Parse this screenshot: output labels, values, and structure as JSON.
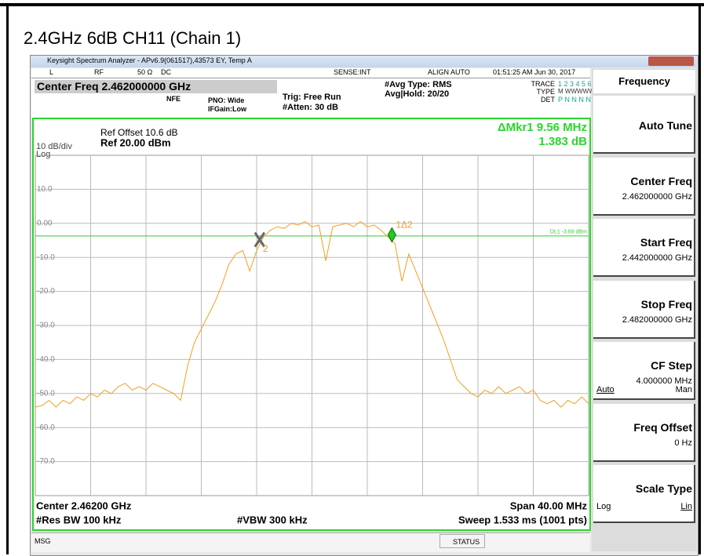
{
  "title": "2.4GHz 6dB CH11 (Chain 1)",
  "window_title": "Keysight Spectrum Analyzer - APv6.9(061517),43573 EY, Temp A",
  "status_bar": {
    "mode": "L",
    "rf": "RF",
    "impedance": "50 Ω",
    "coupling": "DC",
    "sense": "SENSE:INT",
    "align": "ALIGN AUTO",
    "datetime": "01:51:25 AM Jun 30, 2017"
  },
  "header": {
    "center_freq": "Center Freq 2.462000000 GHz",
    "nfe": "NFE",
    "pno": "PNO: Wide",
    "ifgain": "IFGain:Low",
    "trig": "Trig: Free Run",
    "atten": "#Atten: 30 dB",
    "avg_type": "#Avg Type: RMS",
    "avg_hold": "Avg|Hold: 20/20",
    "trace_label": "TRACE",
    "trace_nums": "1 2 3 4 5 6",
    "type_label": "TYPE",
    "type_val": "M WWWWW",
    "det_label": "DET",
    "det_val": "P N N N N N"
  },
  "plot": {
    "ref_offset": "Ref Offset 10.6 dB",
    "ref": "Ref 20.00 dBm",
    "scale": "10 dB/div",
    "scale_type": "Log",
    "marker_readout": [
      "ΔMkr1 9.56 MHz",
      "1.383 dB"
    ],
    "yticks": [
      {
        "value": 10,
        "label": "10.0"
      },
      {
        "value": 0,
        "label": "0.00"
      },
      {
        "value": -10,
        "label": "-10.0"
      },
      {
        "value": -20,
        "label": "-20.0"
      },
      {
        "value": -30,
        "label": "-30.0"
      },
      {
        "value": -40,
        "label": "-40.0"
      },
      {
        "value": -50,
        "label": "-50.0"
      },
      {
        "value": -60,
        "label": "-60.0"
      },
      {
        "value": -70,
        "label": "-70.0"
      }
    ],
    "display_line": {
      "label": "DL1 -3.69 dBm",
      "value": -3.69
    },
    "markers": [
      {
        "label": "1Δ2",
        "x": 2467.78,
        "value": -3.4
      },
      {
        "label": "2",
        "x": 2458.22,
        "value": -4.8
      }
    ],
    "trace": {
      "color": "#f0a020",
      "xlim": [
        2442,
        2482
      ],
      "ylim": [
        -80,
        20
      ],
      "values": [
        -54,
        -53.5,
        -52,
        -54,
        -52,
        -53,
        -51,
        -52,
        -50,
        -51,
        -49,
        -50,
        -48,
        -47,
        -49,
        -48,
        -49,
        -47,
        -48,
        -49,
        -50,
        -52,
        -42,
        -35,
        -31,
        -27,
        -23,
        -18,
        -12,
        -9,
        -8,
        -14,
        -8,
        -4,
        -2,
        -1,
        -1.5,
        0,
        -0.5,
        0.5,
        -1,
        -0.5,
        -11,
        -1,
        -0.5,
        0,
        -1,
        0.5,
        -1,
        -0.5,
        -2,
        -4,
        -6,
        -17,
        -9,
        -14,
        -19,
        -24,
        -29,
        -34,
        -40,
        -46,
        -48,
        -50,
        -51,
        -49,
        -50,
        -48,
        -50,
        -49,
        -48,
        -50,
        -49,
        -52,
        -53,
        -52,
        -54,
        -52,
        -53,
        -51,
        -53
      ]
    },
    "footer": {
      "center": "Center 2.46200 GHz",
      "span": "Span 40.00 MHz",
      "rbw": "#Res BW 100 kHz",
      "vbw": "#VBW 300 kHz",
      "sweep": "Sweep  1.533 ms (1001 pts)"
    }
  },
  "softkeys": {
    "title": "Frequency",
    "keys": [
      {
        "label": "Auto Tune"
      },
      {
        "label": "Center Freq",
        "value": "2.462000000 GHz"
      },
      {
        "label": "Start Freq",
        "value": "2.442000000 GHz"
      },
      {
        "label": "Stop Freq",
        "value": "2.482000000 GHz"
      },
      {
        "label": "CF Step",
        "value": "4.000000 MHz",
        "options": [
          "Auto",
          "Man"
        ]
      },
      {
        "label": "Freq Offset",
        "value": "0 Hz"
      },
      {
        "label": "Scale Type",
        "options": [
          "Log",
          "Lin"
        ]
      }
    ]
  },
  "bottom": {
    "msg": "MSG",
    "status": "STATUS"
  }
}
